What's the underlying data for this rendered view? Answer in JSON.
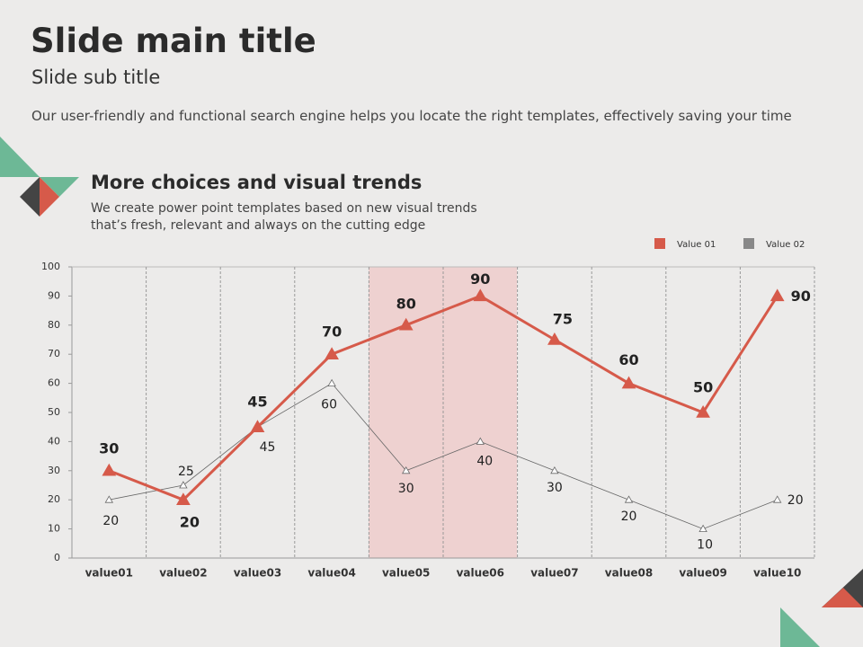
{
  "title": "Slide main title",
  "subtitle": "Slide sub title",
  "body": "Our user-friendly and functional search engine helps you locate the right templates, effectively saving your time",
  "chart_data": {
    "type": "line",
    "title": "More choices and visual trends",
    "subtitle": "We create power point templates based on new visual trends that’s fresh, relevant and always on the cutting edge",
    "categories": [
      "value01",
      "value02",
      "value03",
      "value04",
      "value05",
      "value06",
      "value07",
      "value08",
      "value09",
      "value10"
    ],
    "series": [
      {
        "name": "Value 01",
        "color": "#d65a4a",
        "values": [
          30,
          20,
          45,
          70,
          80,
          90,
          75,
          60,
          50,
          90
        ]
      },
      {
        "name": "Value 02",
        "color": "#666666",
        "values": [
          20,
          25,
          45,
          60,
          30,
          40,
          30,
          20,
          10,
          20
        ]
      }
    ],
    "ylim": [
      0,
      100
    ],
    "yticks": [
      0,
      10,
      20,
      30,
      40,
      50,
      60,
      70,
      80,
      90,
      100
    ],
    "legend": "top-right"
  }
}
